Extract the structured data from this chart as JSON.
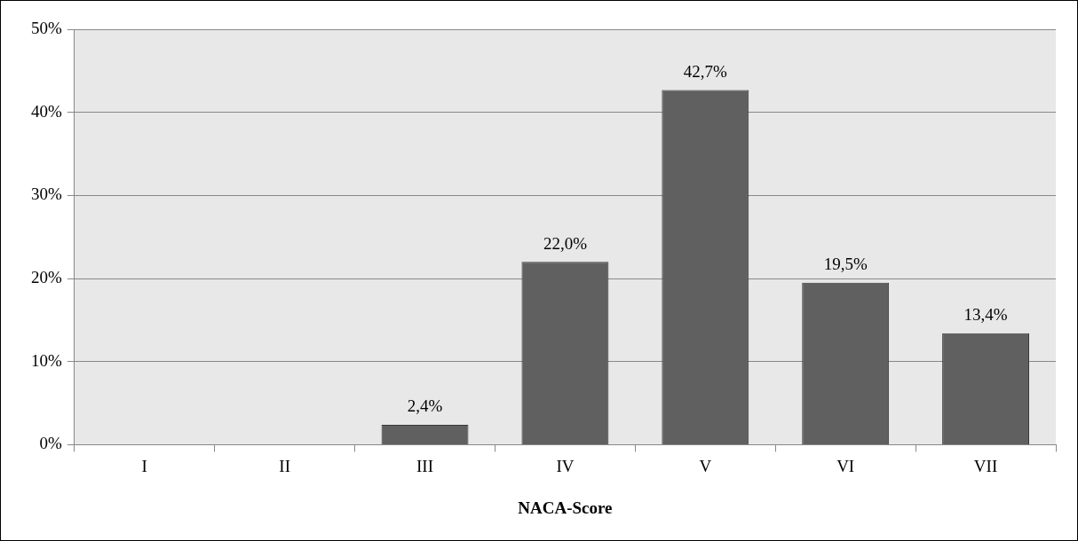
{
  "chart_data": {
    "type": "bar",
    "xlabel": "NACA-Score",
    "categories": [
      "I",
      "II",
      "III",
      "IV",
      "V",
      "VI",
      "VII"
    ],
    "values": [
      0,
      0,
      2.4,
      22.0,
      42.7,
      19.5,
      13.4
    ],
    "value_labels": [
      null,
      null,
      "2,4%",
      "22,0%",
      "42,7%",
      "19,5%",
      "13,4%"
    ],
    "color": "#606060",
    "ylim": [
      0,
      50
    ],
    "yticks": [
      {
        "value": 0,
        "label": "0%"
      },
      {
        "value": 10,
        "label": "10%"
      },
      {
        "value": 20,
        "label": "20%"
      },
      {
        "value": 30,
        "label": "30%"
      },
      {
        "value": 40,
        "label": "40%"
      },
      {
        "value": 50,
        "label": "50%"
      }
    ],
    "grid": "y",
    "legend": false
  }
}
